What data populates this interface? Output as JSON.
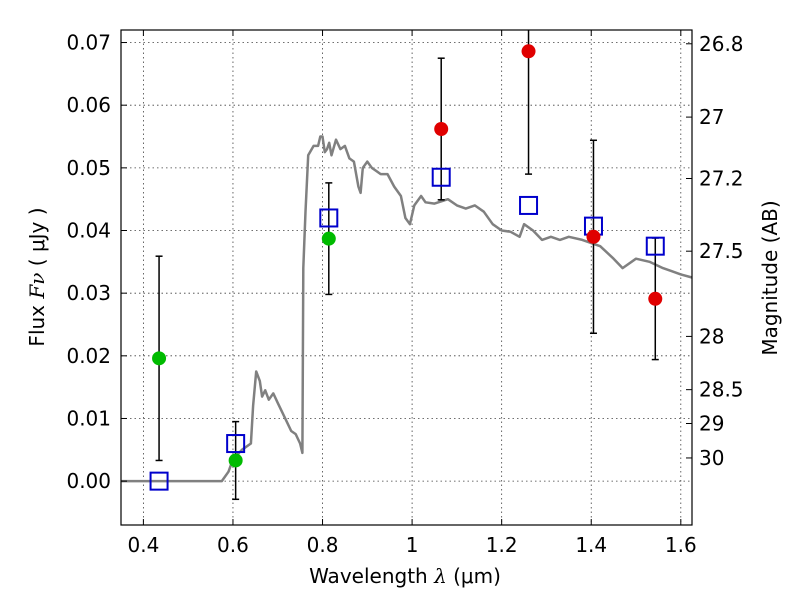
{
  "chart_data": {
    "type": "scatter",
    "xlabel": {
      "prefix": "Wavelength  ",
      "symbol": "λ",
      "unit": " (μm)"
    },
    "ylabel": {
      "prefix": "Flux  ",
      "symbol": "Fν",
      "unit": "  ( μJy )"
    },
    "y2label": "Magnitude (AB)",
    "xlim": [
      0.35,
      1.625
    ],
    "ylim": [
      -0.007,
      0.072
    ],
    "xticks": [
      0.4,
      0.6,
      0.8,
      1.0,
      1.2,
      1.4,
      1.6
    ],
    "xtick_labels": [
      "0.4",
      "0.6",
      "0.8",
      "1",
      "1.2",
      "1.4",
      "1.6"
    ],
    "yticks": [
      0.0,
      0.01,
      0.02,
      0.03,
      0.04,
      0.05,
      0.06,
      0.07
    ],
    "ytick_labels": [
      "0.00",
      "0.01",
      "0.02",
      "0.03",
      "0.04",
      "0.05",
      "0.06",
      "0.07"
    ],
    "magnitude_ticks": [
      {
        "label": "26.8",
        "flux": 0.0698
      },
      {
        "label": "27",
        "flux": 0.0581
      },
      {
        "label": "27.2",
        "flux": 0.0483
      },
      {
        "label": "27.5",
        "flux": 0.0367
      },
      {
        "label": "28",
        "flux": 0.0231
      },
      {
        "label": "28.5",
        "flux": 0.0146
      },
      {
        "label": "29",
        "flux": 0.0092
      },
      {
        "label": "30",
        "flux": 0.0037
      }
    ],
    "grid": true,
    "model_sed": {
      "color": "#808080",
      "points": [
        [
          0.35,
          0.0
        ],
        [
          0.575,
          0.0
        ],
        [
          0.59,
          0.0015
        ],
        [
          0.6,
          0.0035
        ],
        [
          0.62,
          0.005
        ],
        [
          0.64,
          0.006
        ],
        [
          0.645,
          0.012
        ],
        [
          0.652,
          0.0175
        ],
        [
          0.66,
          0.016
        ],
        [
          0.665,
          0.0135
        ],
        [
          0.672,
          0.0145
        ],
        [
          0.68,
          0.013
        ],
        [
          0.69,
          0.014
        ],
        [
          0.7,
          0.0125
        ],
        [
          0.71,
          0.011
        ],
        [
          0.72,
          0.0095
        ],
        [
          0.73,
          0.008
        ],
        [
          0.74,
          0.0075
        ],
        [
          0.75,
          0.006
        ],
        [
          0.755,
          0.0045
        ],
        [
          0.757,
          0.034
        ],
        [
          0.762,
          0.043
        ],
        [
          0.768,
          0.052
        ],
        [
          0.78,
          0.0535
        ],
        [
          0.79,
          0.0535
        ],
        [
          0.795,
          0.055
        ],
        [
          0.8,
          0.055
        ],
        [
          0.805,
          0.0525
        ],
        [
          0.81,
          0.053
        ],
        [
          0.815,
          0.054
        ],
        [
          0.82,
          0.052
        ],
        [
          0.83,
          0.0545
        ],
        [
          0.84,
          0.053
        ],
        [
          0.85,
          0.0535
        ],
        [
          0.86,
          0.0515
        ],
        [
          0.87,
          0.051
        ],
        [
          0.88,
          0.047
        ],
        [
          0.885,
          0.046
        ],
        [
          0.89,
          0.05
        ],
        [
          0.9,
          0.051
        ],
        [
          0.91,
          0.05
        ],
        [
          0.92,
          0.0495
        ],
        [
          0.93,
          0.049
        ],
        [
          0.945,
          0.049
        ],
        [
          0.96,
          0.047
        ],
        [
          0.975,
          0.0455
        ],
        [
          0.985,
          0.042
        ],
        [
          0.995,
          0.041
        ],
        [
          1.005,
          0.044
        ],
        [
          1.02,
          0.0455
        ],
        [
          1.03,
          0.0445
        ],
        [
          1.05,
          0.0443
        ],
        [
          1.08,
          0.045
        ],
        [
          1.1,
          0.044
        ],
        [
          1.12,
          0.0435
        ],
        [
          1.14,
          0.044
        ],
        [
          1.16,
          0.043
        ],
        [
          1.18,
          0.041
        ],
        [
          1.2,
          0.04
        ],
        [
          1.22,
          0.0398
        ],
        [
          1.24,
          0.039
        ],
        [
          1.25,
          0.041
        ],
        [
          1.27,
          0.04
        ],
        [
          1.29,
          0.0385
        ],
        [
          1.31,
          0.039
        ],
        [
          1.33,
          0.0385
        ],
        [
          1.35,
          0.039
        ],
        [
          1.38,
          0.0385
        ],
        [
          1.42,
          0.0375
        ],
        [
          1.45,
          0.0355
        ],
        [
          1.47,
          0.034
        ],
        [
          1.5,
          0.0355
        ],
        [
          1.53,
          0.035
        ],
        [
          1.56,
          0.034
        ],
        [
          1.58,
          0.0335
        ],
        [
          1.6,
          0.033
        ],
        [
          1.625,
          0.0325
        ]
      ]
    },
    "model_photometry": {
      "marker": "open-square",
      "color": "#0000cc",
      "x": [
        0.435,
        0.606,
        0.814,
        1.065,
        1.26,
        1.405,
        1.543
      ],
      "y": [
        0.0,
        0.006,
        0.042,
        0.0485,
        0.044,
        0.0407,
        0.0375
      ]
    },
    "observed_detections": {
      "marker": "filled-circle",
      "color": "#e00000",
      "x": [
        1.065,
        1.26,
        1.405,
        1.543
      ],
      "y": [
        0.0562,
        0.0686,
        0.039,
        0.0291
      ],
      "yerr": [
        0.0113,
        0.0196,
        0.0154,
        0.0097
      ]
    },
    "observed_other": {
      "marker": "filled-circle",
      "color": "#00bb00",
      "x": [
        0.435,
        0.606,
        0.814
      ],
      "y": [
        0.0196,
        0.0033,
        0.0387
      ],
      "yerr": [
        0.0163,
        0.0062,
        0.0089
      ]
    }
  }
}
